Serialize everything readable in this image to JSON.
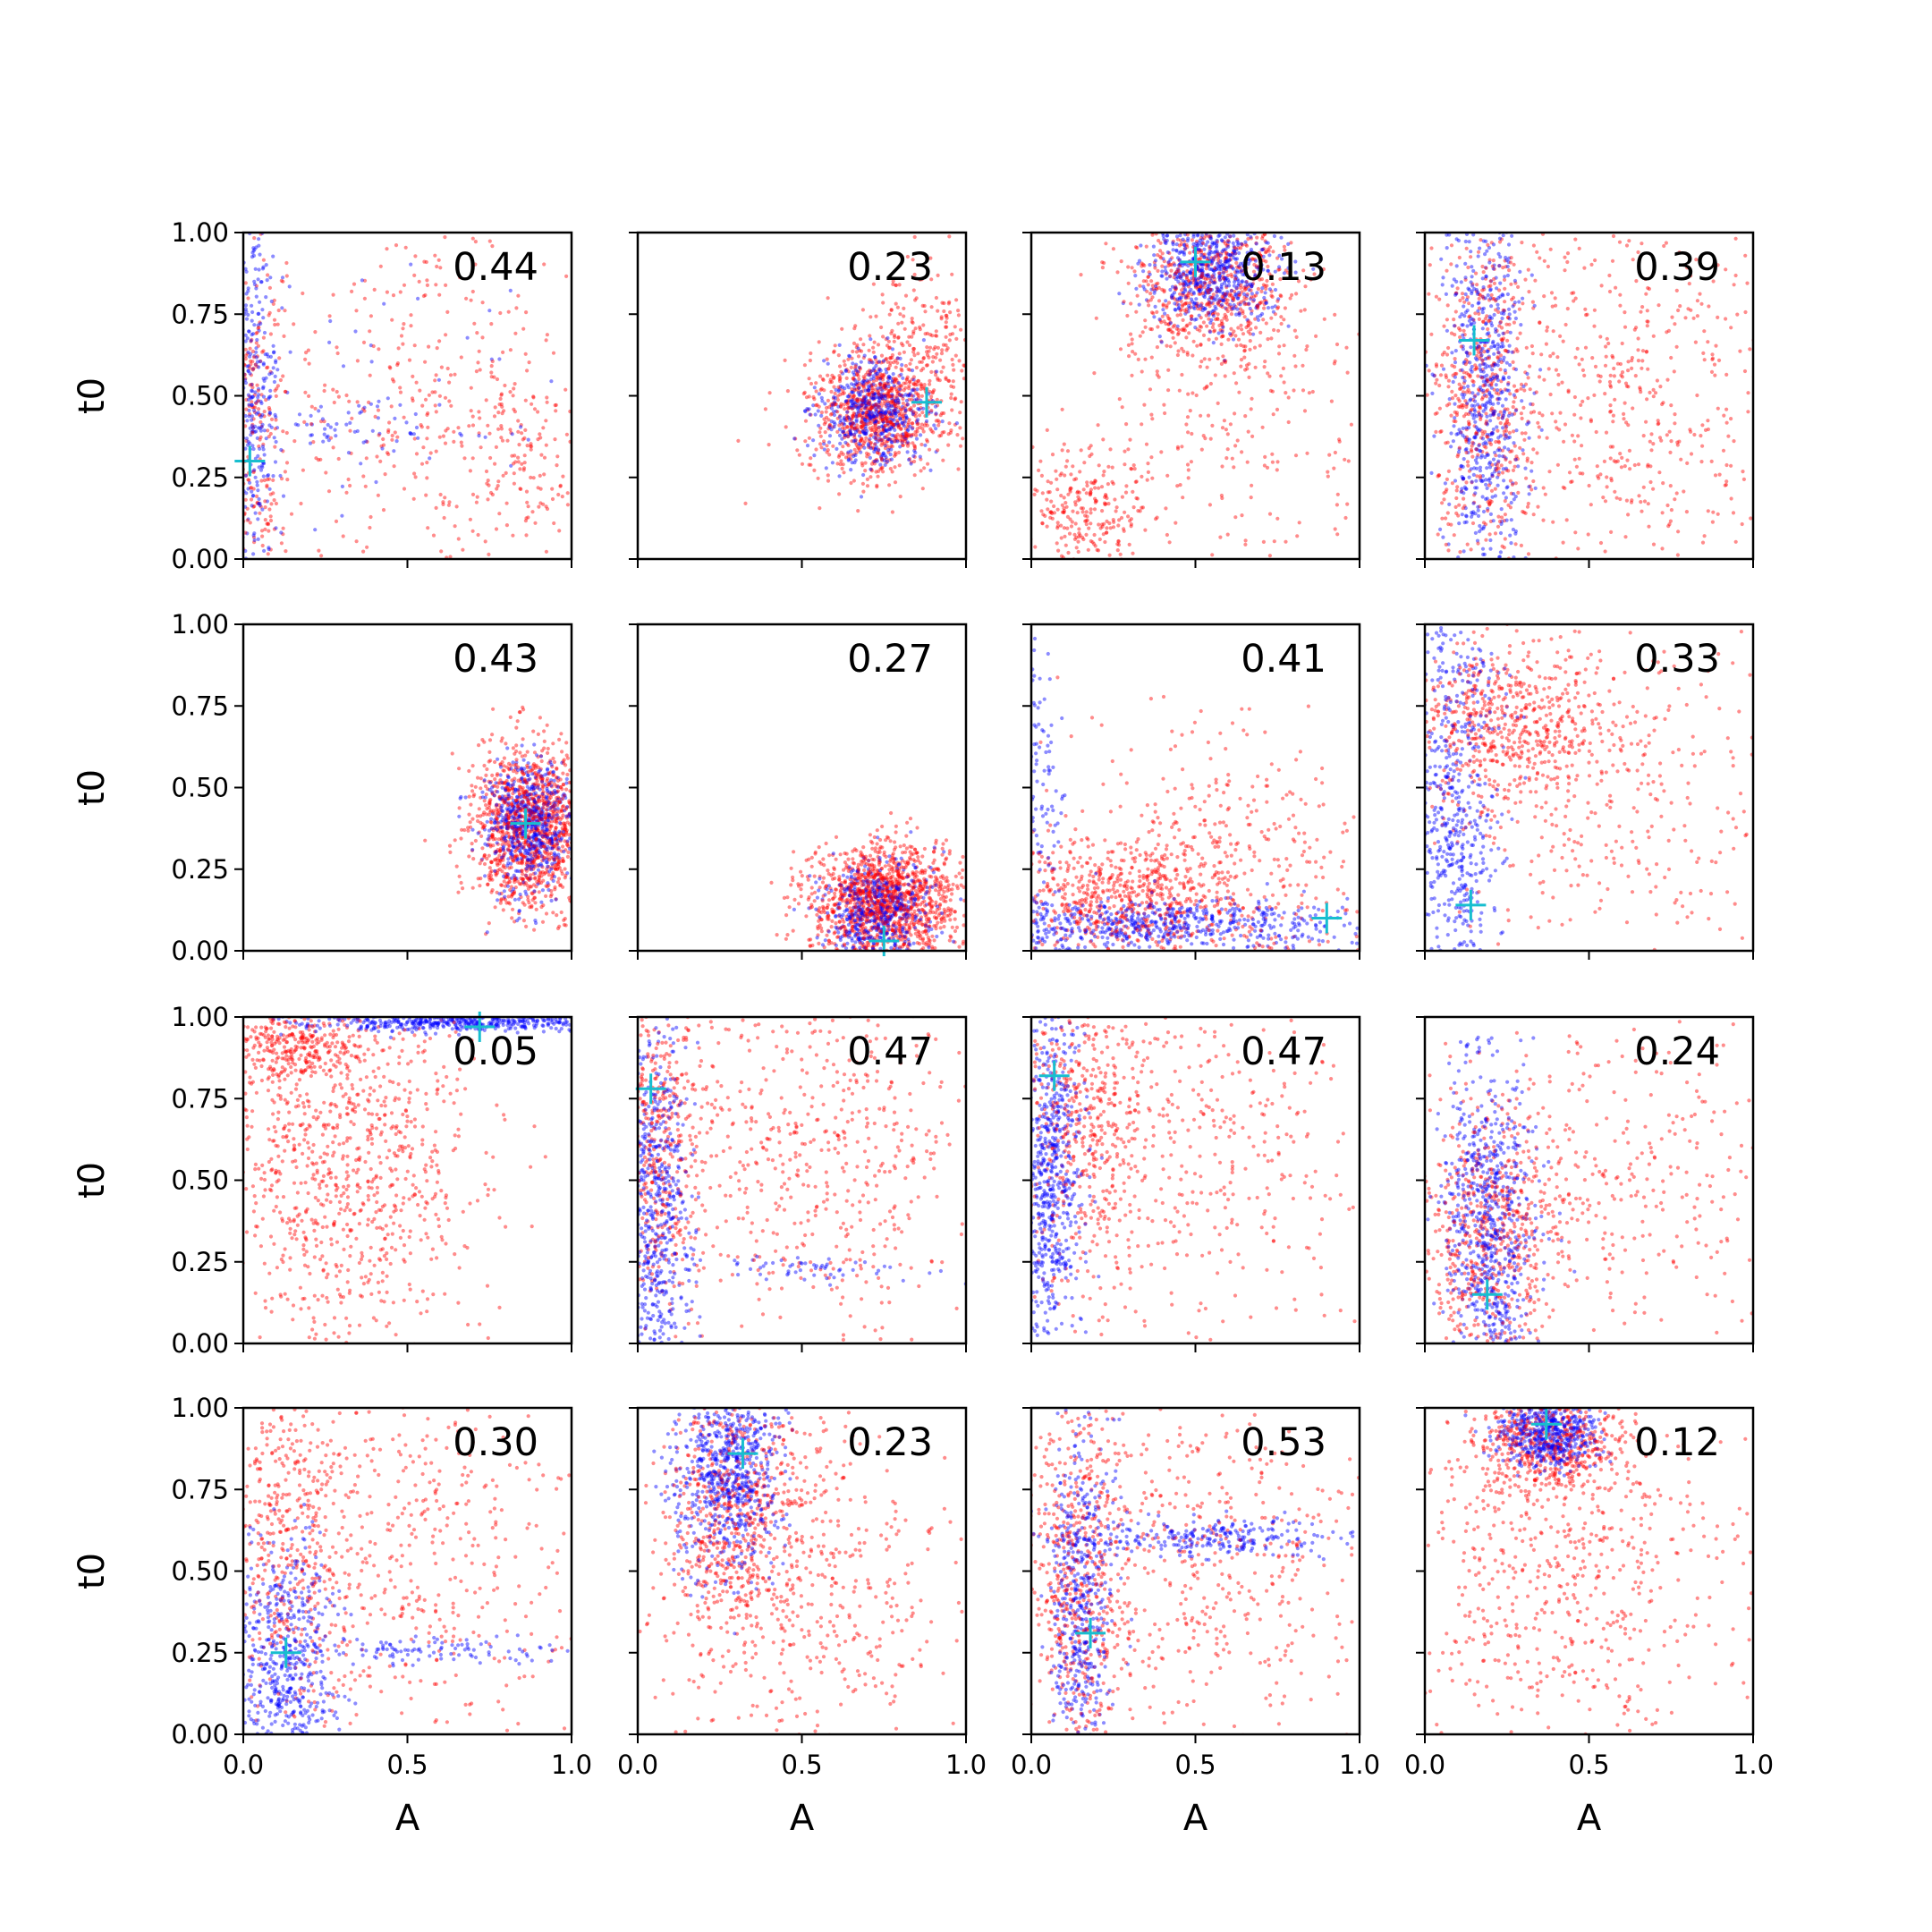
{
  "chart_data": {
    "type": "scatter",
    "layout": "4x4 grid of scatter subplots, shared x and y limits",
    "xlabel": "A",
    "ylabel": "t0",
    "xlim": [
      0.0,
      1.0
    ],
    "ylim": [
      0.0,
      1.0
    ],
    "x_ticks": [
      "0.0",
      "0.5",
      "1.0"
    ],
    "y_ticks": [
      "0.00",
      "0.25",
      "0.50",
      "0.75",
      "1.00"
    ],
    "grid": false,
    "legend": "none",
    "colors": {
      "series_a": "#0000ff",
      "series_b": "#ff0000",
      "marker": "#17becf"
    },
    "panels": [
      {
        "annotation": "0.44",
        "marker": [
          0.02,
          0.3
        ],
        "blue": [
          {
            "cx": 0.03,
            "cy": 0.55,
            "sx": 0.04,
            "sy": 0.3,
            "n": 360
          },
          {
            "cx": 0.3,
            "cy": 0.4,
            "sx": 0.15,
            "sy": 0.04,
            "n": 60
          },
          {
            "cx": 0.5,
            "cy": 0.5,
            "sx": 0.3,
            "sy": 0.3,
            "n": 40
          }
        ],
        "red": [
          {
            "cx": 0.03,
            "cy": 0.4,
            "sx": 0.05,
            "sy": 0.3,
            "n": 200
          },
          {
            "cx": 0.55,
            "cy": 0.5,
            "sx": 0.3,
            "sy": 0.3,
            "n": 300
          },
          {
            "cx": 0.85,
            "cy": 0.3,
            "sx": 0.1,
            "sy": 0.15,
            "n": 80
          }
        ]
      },
      {
        "annotation": "0.23",
        "marker": [
          0.88,
          0.48
        ],
        "blue": [
          {
            "cx": 0.72,
            "cy": 0.45,
            "sx": 0.08,
            "sy": 0.08,
            "n": 500
          }
        ],
        "red": [
          {
            "cx": 0.72,
            "cy": 0.45,
            "sx": 0.1,
            "sy": 0.1,
            "n": 600
          },
          {
            "cx": 0.85,
            "cy": 0.6,
            "sx": 0.1,
            "sy": 0.15,
            "n": 200
          }
        ]
      },
      {
        "annotation": "0.13",
        "marker": [
          0.5,
          0.91
        ],
        "blue": [
          {
            "cx": 0.55,
            "cy": 0.88,
            "sx": 0.1,
            "sy": 0.08,
            "n": 600
          }
        ],
        "red": [
          {
            "cx": 0.55,
            "cy": 0.85,
            "sx": 0.12,
            "sy": 0.12,
            "n": 500
          },
          {
            "cx": 0.18,
            "cy": 0.15,
            "sx": 0.1,
            "sy": 0.1,
            "n": 200
          },
          {
            "cx": 0.6,
            "cy": 0.45,
            "sx": 0.25,
            "sy": 0.25,
            "n": 200
          }
        ]
      },
      {
        "annotation": "0.39",
        "marker": [
          0.15,
          0.67
        ],
        "blue": [
          {
            "cx": 0.18,
            "cy": 0.5,
            "sx": 0.06,
            "sy": 0.3,
            "n": 600
          }
        ],
        "red": [
          {
            "cx": 0.18,
            "cy": 0.5,
            "sx": 0.08,
            "sy": 0.3,
            "n": 400
          },
          {
            "cx": 0.6,
            "cy": 0.5,
            "sx": 0.25,
            "sy": 0.3,
            "n": 400
          }
        ]
      },
      {
        "annotation": "0.43",
        "marker": [
          0.86,
          0.39
        ],
        "blue": [
          {
            "cx": 0.87,
            "cy": 0.38,
            "sx": 0.07,
            "sy": 0.1,
            "n": 600
          }
        ],
        "red": [
          {
            "cx": 0.87,
            "cy": 0.38,
            "sx": 0.09,
            "sy": 0.12,
            "n": 900
          }
        ]
      },
      {
        "annotation": "0.27",
        "marker": [
          0.75,
          0.03
        ],
        "blue": [
          {
            "cx": 0.72,
            "cy": 0.12,
            "sx": 0.08,
            "sy": 0.08,
            "n": 500
          }
        ],
        "red": [
          {
            "cx": 0.75,
            "cy": 0.15,
            "sx": 0.12,
            "sy": 0.09,
            "n": 1000
          }
        ]
      },
      {
        "annotation": "0.41",
        "marker": [
          0.9,
          0.1
        ],
        "blue": [
          {
            "cx": 0.4,
            "cy": 0.08,
            "sx": 0.3,
            "sy": 0.04,
            "n": 600
          },
          {
            "cx": 0.03,
            "cy": 0.5,
            "sx": 0.03,
            "sy": 0.25,
            "n": 100
          }
        ],
        "red": [
          {
            "cx": 0.3,
            "cy": 0.15,
            "sx": 0.2,
            "sy": 0.1,
            "n": 500
          },
          {
            "cx": 0.6,
            "cy": 0.3,
            "sx": 0.25,
            "sy": 0.2,
            "n": 250
          }
        ]
      },
      {
        "annotation": "0.33",
        "marker": [
          0.14,
          0.14
        ],
        "blue": [
          {
            "cx": 0.08,
            "cy": 0.3,
            "sx": 0.07,
            "sy": 0.25,
            "n": 500
          },
          {
            "cx": 0.1,
            "cy": 0.85,
            "sx": 0.08,
            "sy": 0.1,
            "n": 100
          }
        ],
        "red": [
          {
            "cx": 0.25,
            "cy": 0.7,
            "sx": 0.15,
            "sy": 0.12,
            "n": 400
          },
          {
            "cx": 0.5,
            "cy": 0.5,
            "sx": 0.3,
            "sy": 0.25,
            "n": 300
          }
        ]
      },
      {
        "annotation": "0.05",
        "marker": [
          0.72,
          0.97
        ],
        "blue": [
          {
            "cx": 0.65,
            "cy": 0.985,
            "sx": 0.25,
            "sy": 0.015,
            "n": 500
          }
        ],
        "red": [
          {
            "cx": 0.3,
            "cy": 0.55,
            "sx": 0.2,
            "sy": 0.3,
            "n": 700
          },
          {
            "cx": 0.15,
            "cy": 0.9,
            "sx": 0.1,
            "sy": 0.06,
            "n": 200
          }
        ]
      },
      {
        "annotation": "0.47",
        "marker": [
          0.04,
          0.78
        ],
        "blue": [
          {
            "cx": 0.06,
            "cy": 0.4,
            "sx": 0.05,
            "sy": 0.3,
            "n": 600
          },
          {
            "cx": 0.55,
            "cy": 0.23,
            "sx": 0.2,
            "sy": 0.02,
            "n": 60
          }
        ],
        "red": [
          {
            "cx": 0.06,
            "cy": 0.6,
            "sx": 0.06,
            "sy": 0.3,
            "n": 300
          },
          {
            "cx": 0.5,
            "cy": 0.6,
            "sx": 0.3,
            "sy": 0.3,
            "n": 500
          }
        ]
      },
      {
        "annotation": "0.47",
        "marker": [
          0.07,
          0.82
        ],
        "blue": [
          {
            "cx": 0.06,
            "cy": 0.5,
            "sx": 0.05,
            "sy": 0.3,
            "n": 700
          }
        ],
        "red": [
          {
            "cx": 0.15,
            "cy": 0.7,
            "sx": 0.12,
            "sy": 0.25,
            "n": 400
          },
          {
            "cx": 0.5,
            "cy": 0.6,
            "sx": 0.3,
            "sy": 0.3,
            "n": 300
          }
        ]
      },
      {
        "annotation": "0.24",
        "marker": [
          0.19,
          0.15
        ],
        "blue": [
          {
            "cx": 0.2,
            "cy": 0.35,
            "sx": 0.07,
            "sy": 0.25,
            "n": 700
          }
        ],
        "red": [
          {
            "cx": 0.2,
            "cy": 0.3,
            "sx": 0.1,
            "sy": 0.2,
            "n": 400
          },
          {
            "cx": 0.55,
            "cy": 0.5,
            "sx": 0.3,
            "sy": 0.25,
            "n": 300
          }
        ]
      },
      {
        "annotation": "0.30",
        "marker": [
          0.13,
          0.25
        ],
        "blue": [
          {
            "cx": 0.12,
            "cy": 0.2,
            "sx": 0.08,
            "sy": 0.2,
            "n": 600
          },
          {
            "cx": 0.6,
            "cy": 0.26,
            "sx": 0.2,
            "sy": 0.02,
            "n": 100
          }
        ],
        "red": [
          {
            "cx": 0.15,
            "cy": 0.6,
            "sx": 0.1,
            "sy": 0.25,
            "n": 300
          },
          {
            "cx": 0.5,
            "cy": 0.55,
            "sx": 0.3,
            "sy": 0.3,
            "n": 400
          }
        ]
      },
      {
        "annotation": "0.23",
        "marker": [
          0.32,
          0.86
        ],
        "blue": [
          {
            "cx": 0.27,
            "cy": 0.8,
            "sx": 0.08,
            "sy": 0.15,
            "n": 700
          }
        ],
        "red": [
          {
            "cx": 0.3,
            "cy": 0.7,
            "sx": 0.1,
            "sy": 0.2,
            "n": 400
          },
          {
            "cx": 0.5,
            "cy": 0.45,
            "sx": 0.25,
            "sy": 0.3,
            "n": 400
          }
        ]
      },
      {
        "annotation": "0.53",
        "marker": [
          0.18,
          0.31
        ],
        "blue": [
          {
            "cx": 0.15,
            "cy": 0.4,
            "sx": 0.05,
            "sy": 0.3,
            "n": 500
          },
          {
            "cx": 0.55,
            "cy": 0.6,
            "sx": 0.2,
            "sy": 0.03,
            "n": 250
          }
        ],
        "red": [
          {
            "cx": 0.15,
            "cy": 0.45,
            "sx": 0.08,
            "sy": 0.3,
            "n": 400
          },
          {
            "cx": 0.5,
            "cy": 0.55,
            "sx": 0.3,
            "sy": 0.3,
            "n": 400
          }
        ]
      },
      {
        "annotation": "0.12",
        "marker": [
          0.37,
          0.95
        ],
        "blue": [
          {
            "cx": 0.38,
            "cy": 0.92,
            "sx": 0.08,
            "sy": 0.05,
            "n": 500
          }
        ],
        "red": [
          {
            "cx": 0.38,
            "cy": 0.9,
            "sx": 0.12,
            "sy": 0.08,
            "n": 400
          },
          {
            "cx": 0.4,
            "cy": 0.5,
            "sx": 0.3,
            "sy": 0.3,
            "n": 500
          }
        ]
      }
    ]
  }
}
